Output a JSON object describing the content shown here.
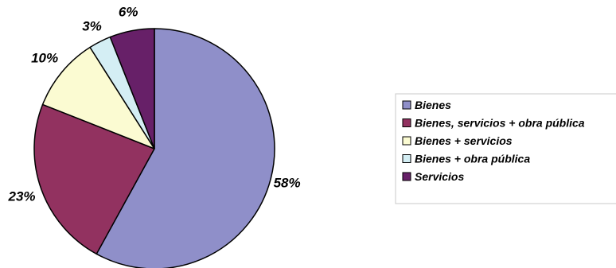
{
  "chart_data": {
    "type": "pie",
    "slices": [
      {
        "label": "Bienes",
        "value": 58,
        "display": "58%",
        "color": "#8f8fc9"
      },
      {
        "label": "Bienes, servicios + obra pública",
        "value": 23,
        "display": "23%",
        "color": "#923260"
      },
      {
        "label": "Bienes + servicios",
        "value": 10,
        "display": "10%",
        "color": "#fbfbd2"
      },
      {
        "label": "Bienes + obra pública",
        "value": 3,
        "display": "3%",
        "color": "#d4eef4"
      },
      {
        "label": "Servicios",
        "value": 6,
        "display": "6%",
        "color": "#672068"
      }
    ],
    "start_angle": "12 o'clock",
    "direction": "clockwise",
    "legend_position": "right"
  }
}
